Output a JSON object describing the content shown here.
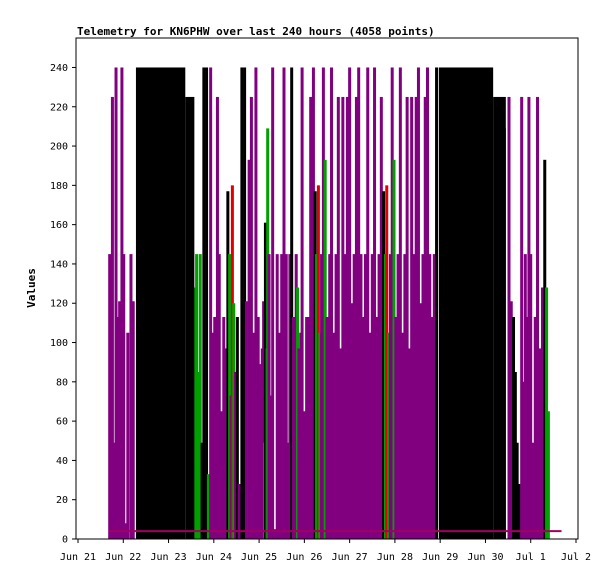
{
  "chart_data": {
    "type": "bar",
    "title": "Telemetry for KN6PHW over last 240 hours (4058 points)",
    "xlabel": "",
    "ylabel": "Values",
    "ylim": [
      0,
      255
    ],
    "xlim": [
      0,
      11
    ],
    "x_ticks": [
      {
        "x": 0,
        "label": "Jun 21"
      },
      {
        "x": 1,
        "label": "Jun 22"
      },
      {
        "x": 2,
        "label": "Jun 23"
      },
      {
        "x": 3,
        "label": "Jun 24"
      },
      {
        "x": 4,
        "label": "Jun 25"
      },
      {
        "x": 5,
        "label": "Jun 26"
      },
      {
        "x": 6,
        "label": "Jun 27"
      },
      {
        "x": 7,
        "label": "Jun 28"
      },
      {
        "x": 8,
        "label": "Jun 29"
      },
      {
        "x": 9,
        "label": "Jun 30"
      },
      {
        "x": 10,
        "label": "Jul 1"
      },
      {
        "x": 11,
        "label": "Jul 2"
      }
    ],
    "y_ticks": [
      0,
      20,
      40,
      60,
      80,
      100,
      120,
      140,
      160,
      180,
      200,
      220,
      240
    ],
    "grid": false,
    "colors": {
      "purple": "#800080",
      "black": "#000000",
      "green": "#00a000",
      "red": "#e00000",
      "baseline": "#a00060"
    },
    "baseline_value": 4,
    "baseline_range": [
      0.68,
      10.68
    ],
    "black_blocks": [
      {
        "x0": 1.28,
        "x1": 2.37,
        "top": 240
      },
      {
        "x0": 2.37,
        "x1": 2.57,
        "top": 225
      },
      {
        "x0": 7.97,
        "x1": 9.17,
        "top": 240
      },
      {
        "x0": 9.17,
        "x1": 9.45,
        "top": 225
      },
      {
        "x0": 9.28,
        "x1": 9.45,
        "top": 209
      }
    ],
    "bars": [
      {
        "x": 0.7,
        "value": 145,
        "color": "purple"
      },
      {
        "x": 0.76,
        "value": 225,
        "color": "purple"
      },
      {
        "x": 0.8,
        "value": 49,
        "color": "purple"
      },
      {
        "x": 0.84,
        "value": 240,
        "color": "purple"
      },
      {
        "x": 0.88,
        "value": 113,
        "color": "purple"
      },
      {
        "x": 0.92,
        "value": 121,
        "color": "purple"
      },
      {
        "x": 0.97,
        "value": 240,
        "color": "purple"
      },
      {
        "x": 1.01,
        "value": 145,
        "color": "purple"
      },
      {
        "x": 1.05,
        "value": 8,
        "color": "purple"
      },
      {
        "x": 1.1,
        "value": 105,
        "color": "purple"
      },
      {
        "x": 1.17,
        "value": 145,
        "color": "purple"
      },
      {
        "x": 1.22,
        "value": 121,
        "color": "purple"
      },
      {
        "x": 2.58,
        "value": 128,
        "color": "green"
      },
      {
        "x": 2.62,
        "value": 145,
        "color": "green"
      },
      {
        "x": 2.66,
        "value": 85,
        "color": "green"
      },
      {
        "x": 2.7,
        "value": 145,
        "color": "green"
      },
      {
        "x": 2.74,
        "value": 49,
        "color": "black"
      },
      {
        "x": 2.78,
        "value": 240,
        "color": "black"
      },
      {
        "x": 2.84,
        "value": 240,
        "color": "black"
      },
      {
        "x": 2.88,
        "value": 33,
        "color": "green"
      },
      {
        "x": 2.93,
        "value": 240,
        "color": "purple"
      },
      {
        "x": 2.98,
        "value": 105,
        "color": "purple"
      },
      {
        "x": 3.02,
        "value": 113,
        "color": "purple"
      },
      {
        "x": 3.08,
        "value": 225,
        "color": "purple"
      },
      {
        "x": 3.12,
        "value": 145,
        "color": "purple"
      },
      {
        "x": 3.18,
        "value": 65,
        "color": "purple"
      },
      {
        "x": 3.22,
        "value": 113,
        "color": "purple"
      },
      {
        "x": 3.26,
        "value": 97,
        "color": "purple"
      },
      {
        "x": 3.31,
        "value": 177,
        "color": "black"
      },
      {
        "x": 3.35,
        "value": 145,
        "color": "green"
      },
      {
        "x": 3.38,
        "value": 73,
        "color": "purple"
      },
      {
        "x": 3.41,
        "value": 180,
        "color": "red"
      },
      {
        "x": 3.44,
        "value": 120,
        "color": "green"
      },
      {
        "x": 3.48,
        "value": 85,
        "color": "purple"
      },
      {
        "x": 3.52,
        "value": 113,
        "color": "black"
      },
      {
        "x": 3.56,
        "value": 28,
        "color": "purple"
      },
      {
        "x": 3.62,
        "value": 240,
        "color": "black"
      },
      {
        "x": 3.68,
        "value": 240,
        "color": "black"
      },
      {
        "x": 3.72,
        "value": 121,
        "color": "purple"
      },
      {
        "x": 3.78,
        "value": 193,
        "color": "purple"
      },
      {
        "x": 3.83,
        "value": 225,
        "color": "purple"
      },
      {
        "x": 3.88,
        "value": 105,
        "color": "purple"
      },
      {
        "x": 3.93,
        "value": 240,
        "color": "purple"
      },
      {
        "x": 3.98,
        "value": 113,
        "color": "purple"
      },
      {
        "x": 4.03,
        "value": 89,
        "color": "purple"
      },
      {
        "x": 4.07,
        "value": 97,
        "color": "purple"
      },
      {
        "x": 4.1,
        "value": 121,
        "color": "purple"
      },
      {
        "x": 4.12,
        "value": 49,
        "color": "green"
      },
      {
        "x": 4.14,
        "value": 161,
        "color": "black"
      },
      {
        "x": 4.17,
        "value": 97,
        "color": "purple"
      },
      {
        "x": 4.19,
        "value": 209,
        "color": "green"
      },
      {
        "x": 4.22,
        "value": 145,
        "color": "purple"
      },
      {
        "x": 4.26,
        "value": 73,
        "color": "purple"
      },
      {
        "x": 4.3,
        "value": 240,
        "color": "purple"
      },
      {
        "x": 4.35,
        "value": 5,
        "color": "purple"
      },
      {
        "x": 4.4,
        "value": 145,
        "color": "purple"
      },
      {
        "x": 4.45,
        "value": 105,
        "color": "purple"
      },
      {
        "x": 4.5,
        "value": 145,
        "color": "purple"
      },
      {
        "x": 4.55,
        "value": 240,
        "color": "purple"
      },
      {
        "x": 4.6,
        "value": 145,
        "color": "purple"
      },
      {
        "x": 4.64,
        "value": 49,
        "color": "purple"
      },
      {
        "x": 4.68,
        "value": 145,
        "color": "purple"
      },
      {
        "x": 4.72,
        "value": 240,
        "color": "black"
      },
      {
        "x": 4.76,
        "value": 113,
        "color": "purple"
      },
      {
        "x": 4.79,
        "value": 105,
        "color": "purple"
      },
      {
        "x": 4.82,
        "value": 145,
        "color": "purple"
      },
      {
        "x": 4.85,
        "value": 128,
        "color": "green"
      },
      {
        "x": 4.88,
        "value": 97,
        "color": "purple"
      },
      {
        "x": 4.92,
        "value": 105,
        "color": "purple"
      },
      {
        "x": 4.95,
        "value": 240,
        "color": "purple"
      },
      {
        "x": 5.01,
        "value": 65,
        "color": "purple"
      },
      {
        "x": 5.05,
        "value": 113,
        "color": "purple"
      },
      {
        "x": 5.09,
        "value": 113,
        "color": "purple"
      },
      {
        "x": 5.14,
        "value": 225,
        "color": "purple"
      },
      {
        "x": 5.2,
        "value": 240,
        "color": "purple"
      },
      {
        "x": 5.24,
        "value": 177,
        "color": "black"
      },
      {
        "x": 5.27,
        "value": 145,
        "color": "green"
      },
      {
        "x": 5.31,
        "value": 180,
        "color": "red"
      },
      {
        "x": 5.34,
        "value": 105,
        "color": "green"
      },
      {
        "x": 5.38,
        "value": 145,
        "color": "purple"
      },
      {
        "x": 5.42,
        "value": 240,
        "color": "purple"
      },
      {
        "x": 5.46,
        "value": 193,
        "color": "green"
      },
      {
        "x": 5.5,
        "value": 113,
        "color": "purple"
      },
      {
        "x": 5.56,
        "value": 145,
        "color": "purple"
      },
      {
        "x": 5.6,
        "value": 240,
        "color": "purple"
      },
      {
        "x": 5.65,
        "value": 105,
        "color": "purple"
      },
      {
        "x": 5.7,
        "value": 145,
        "color": "purple"
      },
      {
        "x": 5.75,
        "value": 225,
        "color": "purple"
      },
      {
        "x": 5.8,
        "value": 97,
        "color": "purple"
      },
      {
        "x": 5.85,
        "value": 225,
        "color": "purple"
      },
      {
        "x": 5.9,
        "value": 145,
        "color": "purple"
      },
      {
        "x": 5.95,
        "value": 225,
        "color": "purple"
      },
      {
        "x": 6.0,
        "value": 240,
        "color": "purple"
      },
      {
        "x": 6.05,
        "value": 120,
        "color": "purple"
      },
      {
        "x": 6.1,
        "value": 145,
        "color": "purple"
      },
      {
        "x": 6.15,
        "value": 225,
        "color": "purple"
      },
      {
        "x": 6.2,
        "value": 240,
        "color": "purple"
      },
      {
        "x": 6.25,
        "value": 145,
        "color": "purple"
      },
      {
        "x": 6.3,
        "value": 113,
        "color": "purple"
      },
      {
        "x": 6.35,
        "value": 145,
        "color": "purple"
      },
      {
        "x": 6.4,
        "value": 240,
        "color": "purple"
      },
      {
        "x": 6.45,
        "value": 105,
        "color": "purple"
      },
      {
        "x": 6.5,
        "value": 145,
        "color": "purple"
      },
      {
        "x": 6.55,
        "value": 240,
        "color": "purple"
      },
      {
        "x": 6.6,
        "value": 113,
        "color": "purple"
      },
      {
        "x": 6.65,
        "value": 145,
        "color": "purple"
      },
      {
        "x": 6.7,
        "value": 225,
        "color": "purple"
      },
      {
        "x": 6.75,
        "value": 177,
        "color": "black"
      },
      {
        "x": 6.79,
        "value": 145,
        "color": "green"
      },
      {
        "x": 6.82,
        "value": 180,
        "color": "red"
      },
      {
        "x": 6.86,
        "value": 105,
        "color": "green"
      },
      {
        "x": 6.9,
        "value": 145,
        "color": "purple"
      },
      {
        "x": 6.94,
        "value": 240,
        "color": "purple"
      },
      {
        "x": 6.98,
        "value": 193,
        "color": "green"
      },
      {
        "x": 7.02,
        "value": 113,
        "color": "purple"
      },
      {
        "x": 7.07,
        "value": 145,
        "color": "purple"
      },
      {
        "x": 7.12,
        "value": 240,
        "color": "purple"
      },
      {
        "x": 7.17,
        "value": 105,
        "color": "purple"
      },
      {
        "x": 7.22,
        "value": 145,
        "color": "purple"
      },
      {
        "x": 7.27,
        "value": 225,
        "color": "purple"
      },
      {
        "x": 7.32,
        "value": 97,
        "color": "purple"
      },
      {
        "x": 7.37,
        "value": 225,
        "color": "purple"
      },
      {
        "x": 7.42,
        "value": 145,
        "color": "purple"
      },
      {
        "x": 7.47,
        "value": 225,
        "color": "purple"
      },
      {
        "x": 7.52,
        "value": 240,
        "color": "purple"
      },
      {
        "x": 7.57,
        "value": 120,
        "color": "purple"
      },
      {
        "x": 7.62,
        "value": 145,
        "color": "purple"
      },
      {
        "x": 7.67,
        "value": 225,
        "color": "purple"
      },
      {
        "x": 7.72,
        "value": 240,
        "color": "purple"
      },
      {
        "x": 7.77,
        "value": 145,
        "color": "purple"
      },
      {
        "x": 7.82,
        "value": 113,
        "color": "purple"
      },
      {
        "x": 7.87,
        "value": 145,
        "color": "purple"
      },
      {
        "x": 7.92,
        "value": 240,
        "color": "black"
      },
      {
        "x": 9.52,
        "value": 225,
        "color": "purple"
      },
      {
        "x": 9.57,
        "value": 121,
        "color": "purple"
      },
      {
        "x": 9.62,
        "value": 113,
        "color": "black"
      },
      {
        "x": 9.66,
        "value": 85,
        "color": "black"
      },
      {
        "x": 9.7,
        "value": 49,
        "color": "black"
      },
      {
        "x": 9.74,
        "value": 28,
        "color": "black"
      },
      {
        "x": 9.8,
        "value": 225,
        "color": "purple"
      },
      {
        "x": 9.84,
        "value": 80,
        "color": "purple"
      },
      {
        "x": 9.88,
        "value": 145,
        "color": "purple"
      },
      {
        "x": 9.92,
        "value": 113,
        "color": "purple"
      },
      {
        "x": 9.96,
        "value": 225,
        "color": "purple"
      },
      {
        "x": 10.0,
        "value": 145,
        "color": "purple"
      },
      {
        "x": 10.05,
        "value": 49,
        "color": "purple"
      },
      {
        "x": 10.1,
        "value": 113,
        "color": "purple"
      },
      {
        "x": 10.15,
        "value": 225,
        "color": "purple"
      },
      {
        "x": 10.2,
        "value": 97,
        "color": "purple"
      },
      {
        "x": 10.26,
        "value": 128,
        "color": "purple"
      },
      {
        "x": 10.31,
        "value": 193,
        "color": "black"
      },
      {
        "x": 10.35,
        "value": 128,
        "color": "green"
      },
      {
        "x": 10.39,
        "value": 65,
        "color": "green"
      }
    ]
  }
}
